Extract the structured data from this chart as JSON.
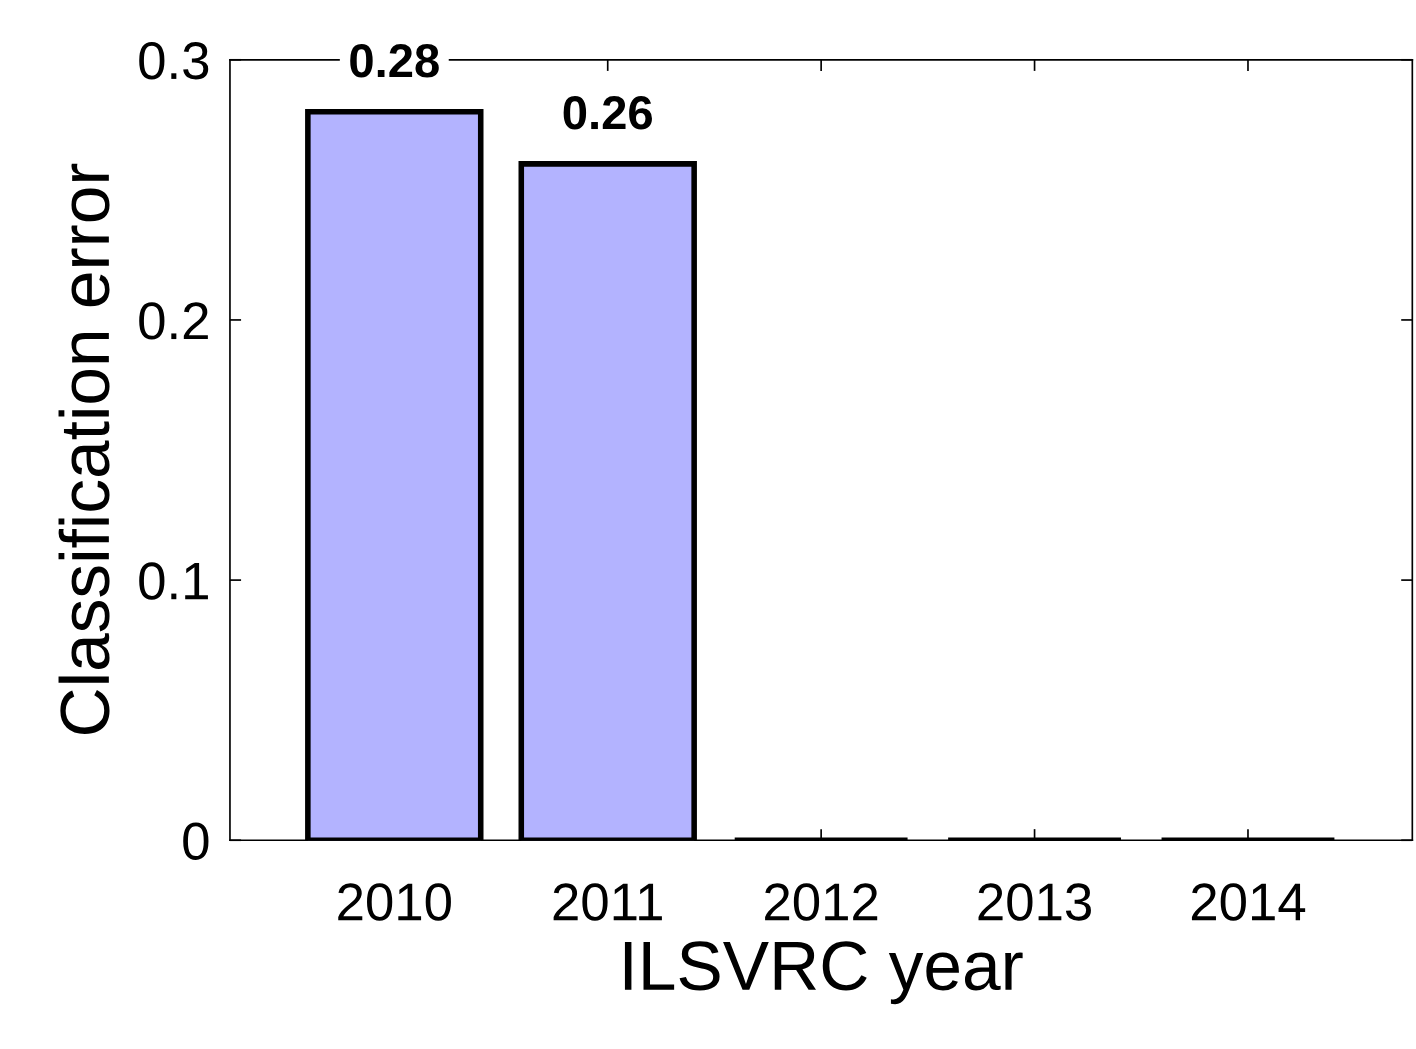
{
  "chart_data": {
    "type": "bar",
    "xlabel": "ILSVRC year",
    "ylabel": "Classification error",
    "categories": [
      "2010",
      "2011",
      "2012",
      "2013",
      "2014"
    ],
    "values": [
      0.28,
      0.26,
      0,
      0,
      0
    ],
    "value_labels": [
      "0.28",
      "0.26",
      null,
      null,
      null
    ],
    "colors": [
      "#b3b3ff",
      "#b3b3ff",
      "#000000",
      "#000000",
      "#000000"
    ],
    "ylim": [
      0,
      0.3
    ],
    "yticks": [
      0,
      0.1,
      0.2,
      0.3
    ],
    "grid": false,
    "legend": false
  }
}
